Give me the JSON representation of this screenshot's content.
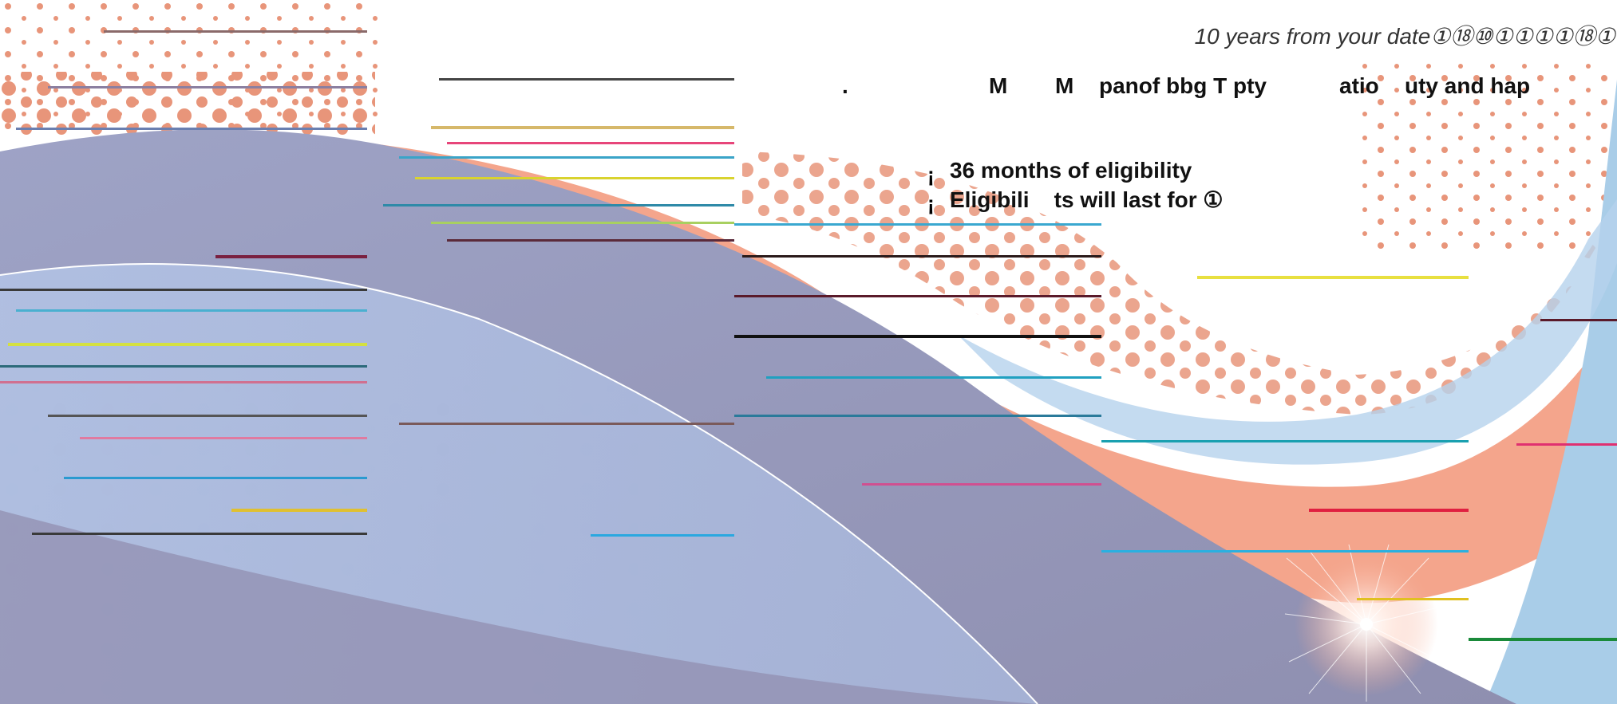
{
  "top_note": "10 years from your date①⑱⑩①①①①⑱①",
  "headline_fragments": [
    ".",
    "M",
    "M",
    "panof bbg T pty",
    "atio",
    "uty and hap"
  ],
  "bullets": [
    {
      "marker": "¡",
      "text": "36 months of eligibility"
    },
    {
      "marker": "¡",
      "text": "Eligibili    ts will last for ①"
    }
  ],
  "colors": {
    "salmon": "#f4a58c",
    "dot": "#e8957a",
    "lavender": "#9fa8cf",
    "light_blue": "#b7c8e6",
    "sky_blue": "#a9cde8"
  }
}
